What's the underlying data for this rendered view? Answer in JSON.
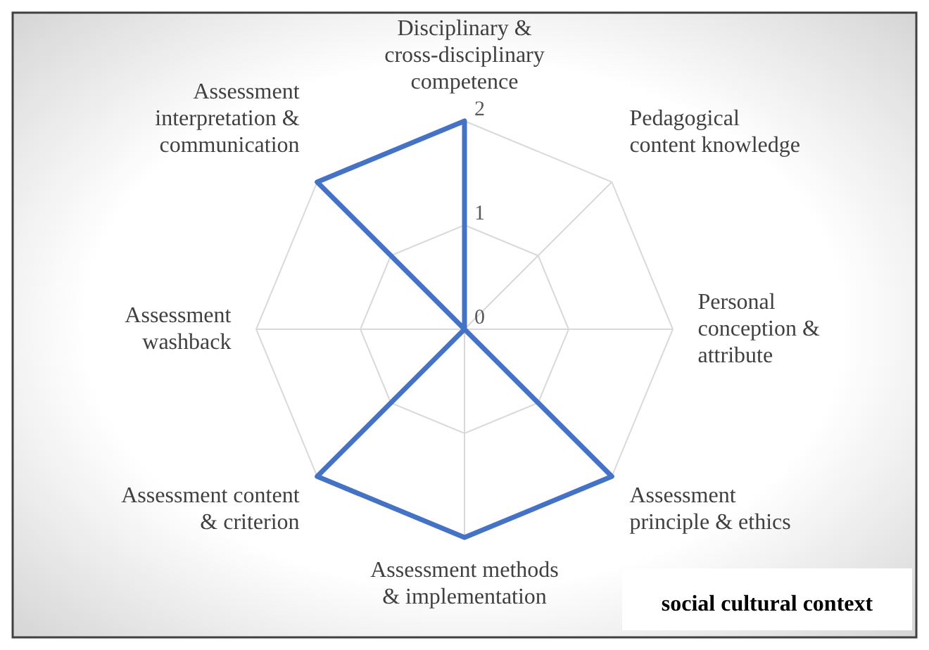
{
  "chart_data": {
    "type": "radar",
    "categories": [
      "Disciplinary & cross-disciplinary competence",
      "Pedagogical content knowledge",
      "Personal conception & attribute",
      "Assessment principle & ethics",
      "Assessment methods & implementation",
      "Assessment content & criterion",
      "Assessment washback",
      "Assessment interpretation & communication"
    ],
    "series": [
      {
        "color": "#4472c4",
        "values": [
          2,
          0,
          0,
          2,
          2,
          2,
          0,
          2
        ]
      }
    ],
    "ylim": [
      0,
      2
    ],
    "yticks": [
      0,
      1,
      2
    ],
    "grid": true,
    "marker": "none",
    "annotations": [
      "social cultural context"
    ]
  }
}
